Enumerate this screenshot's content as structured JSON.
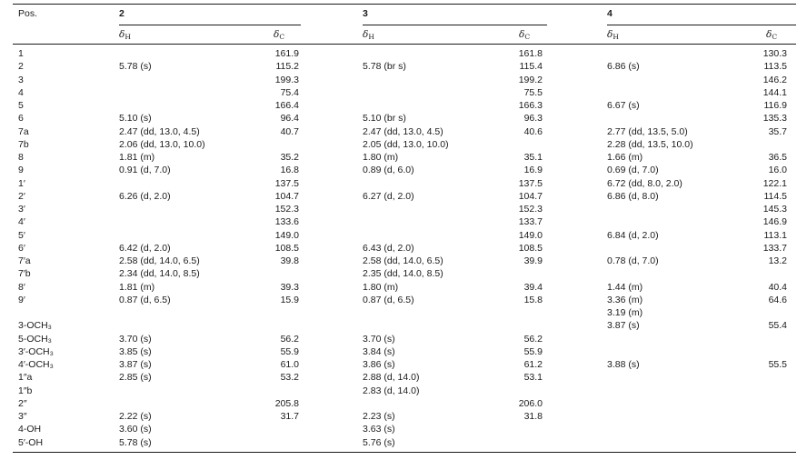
{
  "header": {
    "pos_label": "Pos.",
    "compounds": [
      "2",
      "3",
      "4"
    ],
    "delta_h": "δH",
    "delta_c": "δC"
  },
  "rows": [
    {
      "pos": "1",
      "h2": "",
      "c2": "161.9",
      "h3": "",
      "c3": "161.8",
      "h4": "",
      "c4": "130.3"
    },
    {
      "pos": "2",
      "h2": "5.78 (s)",
      "c2": "115.2",
      "h3": "5.78 (br s)",
      "c3": "115.4",
      "h4": "6.86 (s)",
      "c4": "113.5"
    },
    {
      "pos": "3",
      "h2": "",
      "c2": "199.3",
      "h3": "",
      "c3": "199.2",
      "h4": "",
      "c4": "146.2"
    },
    {
      "pos": "4",
      "h2": "",
      "c2": "75.4",
      "h3": "",
      "c3": "75.5",
      "h4": "",
      "c4": "144.1"
    },
    {
      "pos": "5",
      "h2": "",
      "c2": "166.4",
      "h3": "",
      "c3": "166.3",
      "h4": "6.67 (s)",
      "c4": "116.9"
    },
    {
      "pos": "6",
      "h2": "5.10 (s)",
      "c2": "96.4",
      "h3": "5.10 (br s)",
      "c3": "96.3",
      "h4": "",
      "c4": "135.3"
    },
    {
      "pos": "7a",
      "h2": "2.47 (dd, 13.0, 4.5)",
      "c2": "40.7",
      "h3": "2.47 (dd, 13.0, 4.5)",
      "c3": "40.6",
      "h4": "2.77 (dd, 13.5, 5.0)",
      "c4": "35.7"
    },
    {
      "pos": "7b",
      "h2": "2.06 (dd, 13.0, 10.0)",
      "c2": "",
      "h3": "2.05 (dd, 13.0, 10.0)",
      "c3": "",
      "h4": "2.28 (dd, 13.5, 10.0)",
      "c4": ""
    },
    {
      "pos": "8",
      "h2": "1.81 (m)",
      "c2": "35.2",
      "h3": "1.80 (m)",
      "c3": "35.1",
      "h4": "1.66 (m)",
      "c4": "36.5"
    },
    {
      "pos": "9",
      "h2": "0.91 (d, 7.0)",
      "c2": "16.8",
      "h3": "0.89 (d, 6.0)",
      "c3": "16.9",
      "h4": "0.69 (d, 7.0)",
      "c4": "16.0"
    },
    {
      "pos": "1′",
      "h2": "",
      "c2": "137.5",
      "h3": "",
      "c3": "137.5",
      "h4": "6.72 (dd, 8.0, 2.0)",
      "c4": "122.1"
    },
    {
      "pos": "2′",
      "h2": "6.26 (d, 2.0)",
      "c2": "104.7",
      "h3": "6.27 (d, 2.0)",
      "c3": "104.7",
      "h4": "6.86 (d, 8.0)",
      "c4": "114.5"
    },
    {
      "pos": "3′",
      "h2": "",
      "c2": "152.3",
      "h3": "",
      "c3": "152.3",
      "h4": "",
      "c4": "145.3"
    },
    {
      "pos": "4′",
      "h2": "",
      "c2": "133.6",
      "h3": "",
      "c3": "133.7",
      "h4": "",
      "c4": "146.9"
    },
    {
      "pos": "5′",
      "h2": "",
      "c2": "149.0",
      "h3": "",
      "c3": "149.0",
      "h4": "6.84 (d, 2.0)",
      "c4": "113.1"
    },
    {
      "pos": "6′",
      "h2": "6.42 (d, 2.0)",
      "c2": "108.5",
      "h3": "6.43 (d, 2.0)",
      "c3": "108.5",
      "h4": "",
      "c4": "133.7"
    },
    {
      "pos": "7′a",
      "h2": "2.58 (dd, 14.0, 6.5)",
      "c2": "39.8",
      "h3": "2.58 (dd, 14.0, 6.5)",
      "c3": "39.9",
      "h4": "0.78 (d, 7.0)",
      "c4": "13.2"
    },
    {
      "pos": "7′b",
      "h2": "2.34 (dd, 14.0, 8.5)",
      "c2": "",
      "h3": "2.35 (dd, 14.0, 8.5)",
      "c3": "",
      "h4": "",
      "c4": ""
    },
    {
      "pos": "8′",
      "h2": "1.81 (m)",
      "c2": "39.3",
      "h3": "1.80 (m)",
      "c3": "39.4",
      "h4": "1.44 (m)",
      "c4": "40.4"
    },
    {
      "pos": "9′",
      "h2": "0.87 (d, 6.5)",
      "c2": "15.9",
      "h3": "0.87 (d, 6.5)",
      "c3": "15.8",
      "h4": "3.36 (m)",
      "c4": "64.6"
    },
    {
      "pos": "",
      "h2": "",
      "c2": "",
      "h3": "",
      "c3": "",
      "h4": "3.19 (m)",
      "c4": ""
    },
    {
      "pos": "3-OCH₃",
      "h2": "",
      "c2": "",
      "h3": "",
      "c3": "",
      "h4": "3.87 (s)",
      "c4": "55.4"
    },
    {
      "pos": "5-OCH₃",
      "h2": "3.70 (s)",
      "c2": "56.2",
      "h3": "3.70 (s)",
      "c3": "56.2",
      "h4": "",
      "c4": ""
    },
    {
      "pos": "3′-OCH₃",
      "h2": "3.85 (s)",
      "c2": "55.9",
      "h3": "3.84 (s)",
      "c3": "55.9",
      "h4": "",
      "c4": ""
    },
    {
      "pos": "4′-OCH₃",
      "h2": "3.87 (s)",
      "c2": "61.0",
      "h3": "3.86 (s)",
      "c3": "61.2",
      "h4": "3.88 (s)",
      "c4": "55.5"
    },
    {
      "pos": "1″a",
      "h2": "2.85 (s)",
      "c2": "53.2",
      "h3": "2.88 (d, 14.0)",
      "c3": "53.1",
      "h4": "",
      "c4": ""
    },
    {
      "pos": "1″b",
      "h2": "",
      "c2": "",
      "h3": "2.83 (d, 14.0)",
      "c3": "",
      "h4": "",
      "c4": ""
    },
    {
      "pos": "2″",
      "h2": "",
      "c2": "205.8",
      "h3": "",
      "c3": "206.0",
      "h4": "",
      "c4": ""
    },
    {
      "pos": "3″",
      "h2": "2.22 (s)",
      "c2": "31.7",
      "h3": "2.23 (s)",
      "c3": "31.8",
      "h4": "",
      "c4": ""
    },
    {
      "pos": "4-OH",
      "h2": "3.60 (s)",
      "c2": "",
      "h3": "3.63 (s)",
      "c3": "",
      "h4": "",
      "c4": ""
    },
    {
      "pos": "5′-OH",
      "h2": "5.78 (s)",
      "c2": "",
      "h3": "5.76 (s)",
      "c3": "",
      "h4": "",
      "c4": ""
    }
  ]
}
